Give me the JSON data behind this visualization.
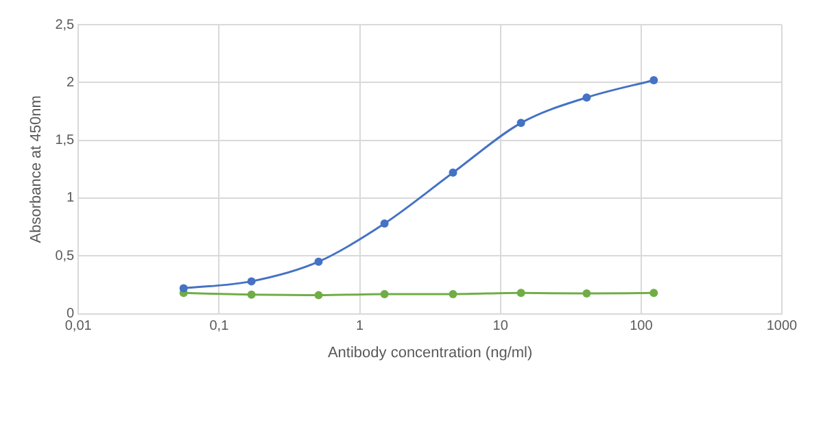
{
  "chart_data": {
    "type": "line",
    "xlabel": "Antibody concentration (ng/ml)",
    "ylabel": "Absorbance at 450nm",
    "x": [
      0.056,
      0.17,
      0.51,
      1.5,
      4.6,
      14,
      41,
      123
    ],
    "series": [
      {
        "color": "#4472c4",
        "values": [
          0.22,
          0.28,
          0.45,
          0.78,
          1.22,
          1.65,
          1.87,
          2.02
        ]
      },
      {
        "color": "#70ad47",
        "values": [
          0.18,
          0.165,
          0.16,
          0.17,
          0.17,
          0.18,
          0.175,
          0.18
        ]
      }
    ],
    "log": "x",
    "xlim": [
      0.01,
      1000
    ],
    "xticks": [
      {
        "value": 0.01,
        "label": "0,01"
      },
      {
        "value": 0.1,
        "label": "0,1"
      },
      1,
      10,
      100,
      1000
    ],
    "ylim": [
      0,
      2.5
    ],
    "yticks": [
      0,
      {
        "value": 0.5,
        "label": "0,5"
      },
      1,
      {
        "value": 1.5,
        "label": "1,5"
      },
      2,
      {
        "value": 2.5,
        "label": "2,5"
      }
    ],
    "grid": true,
    "marker": "circle",
    "line_style": "solid"
  }
}
